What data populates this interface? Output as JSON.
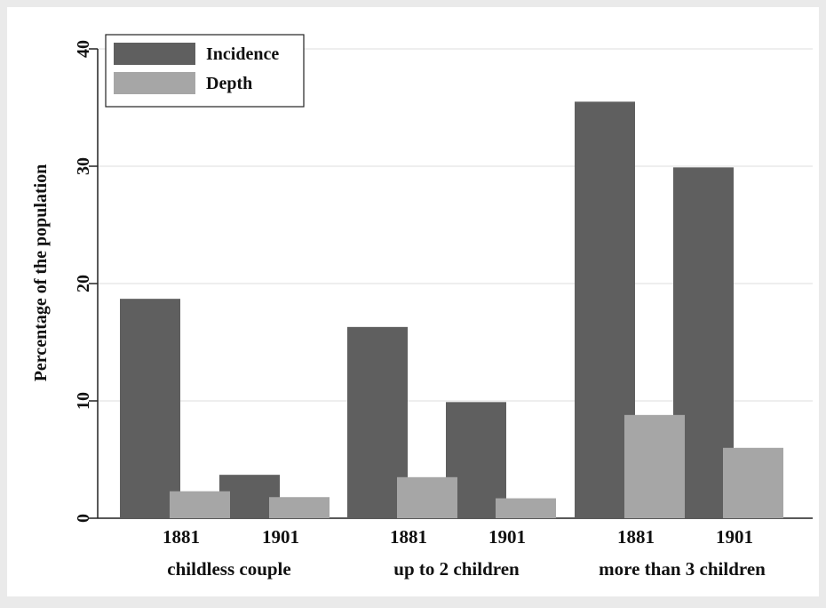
{
  "chart_data": {
    "type": "bar",
    "title": "",
    "ylabel": "Percentage of the population",
    "ylim": [
      0,
      40
    ],
    "yticks": [
      0,
      10,
      20,
      30,
      40
    ],
    "grid": true,
    "legend_position": "top-left",
    "groups": [
      {
        "label": "childless couple",
        "years": [
          "1881",
          "1901"
        ]
      },
      {
        "label": "up to 2 children",
        "years": [
          "1881",
          "1901"
        ]
      },
      {
        "label": "more than 3 children",
        "years": [
          "1881",
          "1901"
        ]
      }
    ],
    "categories": [
      "1881",
      "1901",
      "1881",
      "1901",
      "1881",
      "1901"
    ],
    "series": [
      {
        "name": "Incidence",
        "color": "#5f5f5f",
        "values": [
          18.7,
          3.7,
          16.3,
          9.9,
          35.5,
          29.9
        ]
      },
      {
        "name": "Depth",
        "color": "#a6a6a6",
        "values": [
          2.3,
          1.8,
          3.5,
          1.7,
          8.8,
          6.0
        ]
      }
    ]
  }
}
